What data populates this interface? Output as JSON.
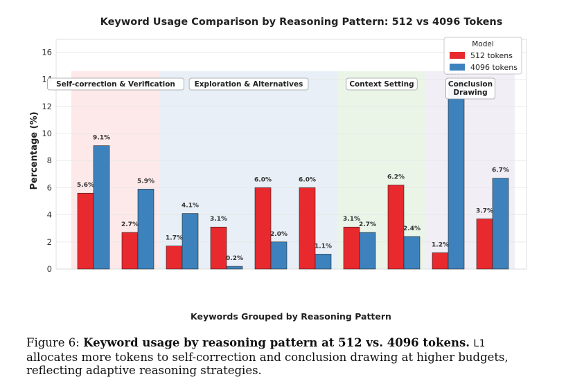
{
  "chart_data": {
    "type": "bar",
    "title": "Keyword Usage Comparison by Reasoning Pattern: 512 vs 4096 Tokens",
    "xlabel": "Keywords Grouped by Reasoning Pattern",
    "ylabel": "Percentage (%)",
    "ylim": [
      0,
      17
    ],
    "yticks": [
      0,
      2,
      4,
      6,
      8,
      10,
      12,
      14,
      16
    ],
    "grid": true,
    "legend": {
      "title": "Model",
      "position": "top-right"
    },
    "series": [
      {
        "name": "512 tokens",
        "color": "#e8292e",
        "values": [
          5.6,
          2.7,
          1.7,
          3.1,
          6.0,
          6.0,
          3.1,
          6.2,
          1.2,
          3.7
        ],
        "labels": [
          "5.6%",
          "2.7%",
          "1.7%",
          "3.1%",
          "6.0%",
          "6.0%",
          "3.1%",
          "6.2%",
          "1.2%",
          "3.7%"
        ]
      },
      {
        "name": "4096 tokens",
        "color": "#3d82bd",
        "values": [
          9.1,
          5.9,
          4.1,
          0.2,
          2.0,
          1.1,
          2.7,
          2.4,
          13.9,
          6.7
        ],
        "labels": [
          "9.1%",
          "5.9%",
          "4.1%",
          "0.2%",
          "2.0%",
          "1.1%",
          "2.7%",
          "2.4%",
          "13.9%",
          "6.7%"
        ]
      }
    ],
    "groups": [
      {
        "name": "Self-correction & Verification",
        "start": 0,
        "end": 1,
        "color": "#fde5e5"
      },
      {
        "name": "Exploration & Alternatives",
        "start": 2,
        "end": 5,
        "color": "#e4ecf5"
      },
      {
        "name": "Context Setting",
        "start": 6,
        "end": 7,
        "color": "#e6f3e4"
      },
      {
        "name": "Conclusion Drawing",
        "start": 8,
        "end": 9,
        "color": "#eeebf4"
      }
    ]
  },
  "caption": {
    "figure_label": "Figure 6:",
    "bold_text": "Keyword usage by reasoning pattern at 512 vs. 4096 tokens.",
    "model_name": "L1",
    "rest_text": "allocates more tokens to self-correction and conclusion drawing at higher budgets, reflecting adaptive reasoning strategies."
  }
}
